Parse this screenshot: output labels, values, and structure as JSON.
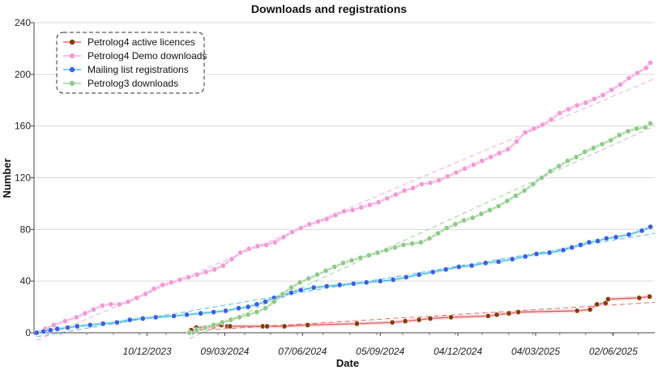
{
  "chart_data": {
    "type": "line",
    "title": "Downloads and registrations",
    "xlabel": "Date",
    "ylabel": "Number",
    "ylim": [
      0,
      240
    ],
    "yticks": [
      0,
      40,
      80,
      120,
      160,
      200,
      240
    ],
    "xlim": [
      "2023-08-01",
      "2025-07-20"
    ],
    "xticks": [
      "2023-12-10",
      "2024-03-09",
      "2024-06-07",
      "2024-09-05",
      "2024-12-04",
      "2025-03-04",
      "2025-06-02"
    ],
    "xtick_labels": [
      "10/12/2023",
      "09/03/2024",
      "07/06/2024",
      "05/09/2024",
      "04/12/2024",
      "04/03/2025",
      "02/06/2025"
    ],
    "grid": "horizontal",
    "legend_position": "top-left",
    "trendlines": "dashed linear fits",
    "series": [
      {
        "name": "Petrolog4 active licences",
        "color": "#8b3a0f",
        "line_color": "#e05050",
        "x": [
          "2024-01-30",
          "2024-02-05",
          "2024-02-25",
          "2024-03-05",
          "2024-03-12",
          "2024-03-15",
          "2024-04-22",
          "2024-04-27",
          "2024-05-17",
          "2024-06-13",
          "2024-08-09",
          "2024-09-19",
          "2024-10-04",
          "2024-10-20",
          "2024-11-02",
          "2024-11-26",
          "2025-01-08",
          "2025-01-18",
          "2025-02-01",
          "2025-02-12",
          "2025-04-21",
          "2025-05-06",
          "2025-05-14",
          "2025-05-24",
          "2025-05-27",
          "2025-07-02",
          "2025-07-14"
        ],
        "y": [
          2,
          4,
          5,
          6,
          5,
          5,
          5,
          5,
          5,
          6,
          7,
          8,
          9,
          10,
          11,
          12,
          13,
          14,
          15,
          16,
          17,
          18,
          22,
          23,
          26,
          27,
          28
        ]
      },
      {
        "name": "Petrolog4 Demo downloads",
        "color": "#f29ad6",
        "line_color": "#f29ad6",
        "x": [
          "2023-08-04",
          "2023-08-14",
          "2023-08-24",
          "2023-09-06",
          "2023-09-19",
          "2023-09-29",
          "2023-10-09",
          "2023-10-19",
          "2023-10-29",
          "2023-11-08",
          "2023-11-18",
          "2023-11-28",
          "2023-12-08",
          "2023-12-18",
          "2023-12-28",
          "2024-01-07",
          "2024-01-17",
          "2024-01-27",
          "2024-02-06",
          "2024-02-16",
          "2024-02-26",
          "2024-03-07",
          "2024-03-17",
          "2024-03-27",
          "2024-04-06",
          "2024-04-16",
          "2024-04-26",
          "2024-05-06",
          "2024-05-16",
          "2024-05-26",
          "2024-06-05",
          "2024-06-15",
          "2024-06-25",
          "2024-07-05",
          "2024-07-15",
          "2024-07-25",
          "2024-08-04",
          "2024-08-14",
          "2024-08-24",
          "2024-09-03",
          "2024-09-13",
          "2024-09-23",
          "2024-10-03",
          "2024-10-13",
          "2024-10-23",
          "2024-11-02",
          "2024-11-12",
          "2024-11-22",
          "2024-12-02",
          "2024-12-12",
          "2024-12-22",
          "2025-01-01",
          "2025-01-11",
          "2025-01-21",
          "2025-01-31",
          "2025-02-10",
          "2025-02-20",
          "2025-03-02",
          "2025-03-12",
          "2025-03-22",
          "2025-04-01",
          "2025-04-11",
          "2025-04-21",
          "2025-05-01",
          "2025-05-11",
          "2025-05-21",
          "2025-05-31",
          "2025-06-10",
          "2025-06-20",
          "2025-06-30",
          "2025-07-10",
          "2025-07-15"
        ],
        "y": [
          0,
          3,
          6,
          9,
          12,
          15,
          18,
          21,
          22,
          22,
          24,
          27,
          30,
          34,
          37,
          39,
          41,
          43,
          45,
          47,
          49,
          52,
          57,
          62,
          65,
          67,
          68,
          70,
          74,
          78,
          81,
          84,
          86,
          88,
          91,
          94,
          95,
          97,
          99,
          101,
          104,
          107,
          110,
          112,
          115,
          116,
          118,
          121,
          124,
          127,
          130,
          133,
          136,
          139,
          142,
          148,
          155,
          158,
          161,
          165,
          170,
          173,
          176,
          178,
          181,
          184,
          188,
          192,
          197,
          201,
          205,
          209
        ]
      },
      {
        "name": "Mailing list registrations",
        "color": "#3b5fe0",
        "line_color": "#2fb0e0",
        "x": [
          "2023-08-04",
          "2023-08-12",
          "2023-08-20",
          "2023-08-28",
          "2023-09-09",
          "2023-09-20",
          "2023-10-05",
          "2023-10-20",
          "2023-11-05",
          "2023-11-20",
          "2023-12-05",
          "2023-12-20",
          "2024-01-10",
          "2024-01-25",
          "2024-02-10",
          "2024-02-25",
          "2024-03-10",
          "2024-03-25",
          "2024-04-05",
          "2024-04-15",
          "2024-04-25",
          "2024-05-05",
          "2024-05-15",
          "2024-05-25",
          "2024-06-05",
          "2024-06-20",
          "2024-07-05",
          "2024-07-20",
          "2024-08-05",
          "2024-08-20",
          "2024-09-05",
          "2024-09-20",
          "2024-10-05",
          "2024-10-20",
          "2024-11-05",
          "2024-11-20",
          "2024-12-05",
          "2024-12-20",
          "2025-01-05",
          "2025-01-20",
          "2025-02-05",
          "2025-02-20",
          "2025-03-05",
          "2025-03-20",
          "2025-04-05",
          "2025-04-15",
          "2025-04-25",
          "2025-05-05",
          "2025-05-15",
          "2025-05-25",
          "2025-06-05",
          "2025-06-20",
          "2025-07-05",
          "2025-07-15"
        ],
        "y": [
          0,
          1,
          2,
          3,
          4,
          5,
          6,
          7,
          8,
          10,
          11,
          12,
          13,
          14,
          15,
          16,
          17,
          19,
          20,
          22,
          24,
          27,
          29,
          31,
          33,
          35,
          36,
          37,
          38,
          39,
          40,
          41,
          43,
          45,
          47,
          49,
          51,
          52,
          54,
          55,
          57,
          59,
          61,
          62,
          64,
          66,
          68,
          70,
          71,
          73,
          74,
          76,
          79,
          82
        ]
      },
      {
        "name": "Petrolog3 downloads",
        "color": "#8fc98a",
        "line_color": "#8fc98a",
        "x": [
          "2024-01-28",
          "2024-02-05",
          "2024-02-15",
          "2024-02-25",
          "2024-03-06",
          "2024-03-16",
          "2024-03-26",
          "2024-04-05",
          "2024-04-15",
          "2024-04-25",
          "2024-05-05",
          "2024-05-15",
          "2024-05-25",
          "2024-06-04",
          "2024-06-14",
          "2024-06-24",
          "2024-07-04",
          "2024-07-14",
          "2024-07-24",
          "2024-08-03",
          "2024-08-13",
          "2024-08-23",
          "2024-09-02",
          "2024-09-12",
          "2024-09-22",
          "2024-10-02",
          "2024-10-12",
          "2024-10-22",
          "2024-11-01",
          "2024-11-11",
          "2024-11-21",
          "2024-12-01",
          "2024-12-11",
          "2024-12-21",
          "2024-12-31",
          "2025-01-10",
          "2025-01-20",
          "2025-01-30",
          "2025-02-09",
          "2025-02-19",
          "2025-03-01",
          "2025-03-11",
          "2025-03-21",
          "2025-03-31",
          "2025-04-10",
          "2025-04-20",
          "2025-04-30",
          "2025-05-10",
          "2025-05-20",
          "2025-05-30",
          "2025-06-09",
          "2025-06-19",
          "2025-06-29",
          "2025-07-09",
          "2025-07-15"
        ],
        "y": [
          0,
          2,
          4,
          6,
          8,
          10,
          12,
          14,
          16,
          19,
          24,
          30,
          35,
          39,
          42,
          45,
          48,
          51,
          54,
          56,
          58,
          60,
          62,
          64,
          66,
          68,
          69,
          70,
          73,
          77,
          81,
          84,
          87,
          89,
          92,
          95,
          98,
          102,
          106,
          110,
          115,
          120,
          125,
          129,
          133,
          136,
          140,
          143,
          146,
          149,
          153,
          156,
          158,
          159,
          162
        ]
      }
    ]
  }
}
